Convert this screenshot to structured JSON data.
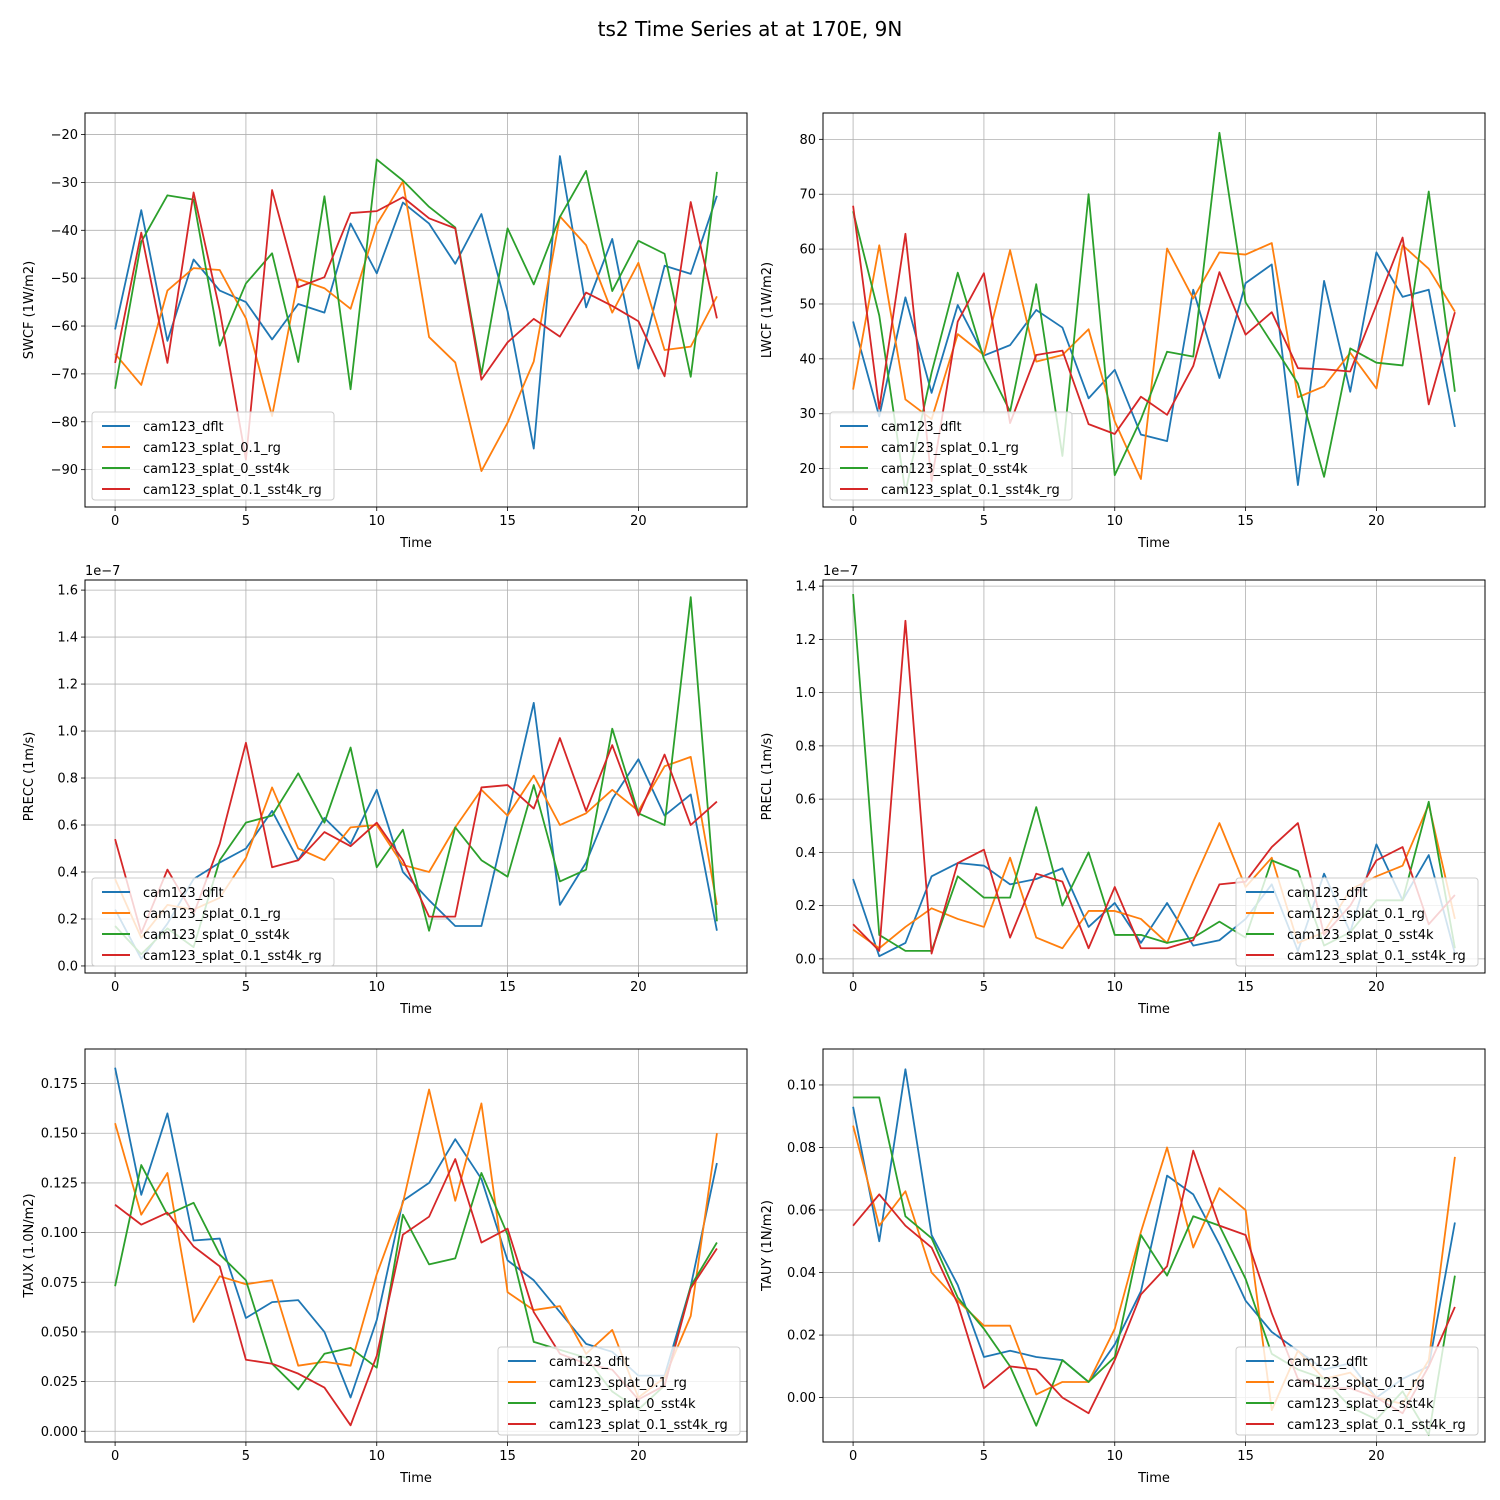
{
  "figure": {
    "title": "ts2 Time Series at at 170E, 9N"
  },
  "colors": {
    "cam123_dflt": "#1f77b4",
    "cam123_splat_0.1_rg": "#ff7f0e",
    "cam123_splat_0_sst4k": "#2ca02c",
    "cam123_splat_0.1_sst4k_rg": "#d62728",
    "grid": "#b0b0b0"
  },
  "chart_data": [
    {
      "type": "line",
      "id": "swcf",
      "title": "",
      "xlabel": "Time",
      "ylabel": "SWCF (1W/m2)",
      "xlim": [
        -1.15,
        24.15
      ],
      "ylim": [
        -15.5,
        -97.8
      ],
      "xticks": [
        0,
        5,
        10,
        15,
        20
      ],
      "yticks": [
        -90,
        -80,
        -70,
        -60,
        -50,
        -40,
        -30,
        -20
      ],
      "ytick_labels": [
        "−90",
        "−80",
        "−70",
        "−60",
        "−50",
        "−40",
        "−30",
        "−20"
      ],
      "offset_label": "",
      "legend": "lower-left",
      "series": [
        {
          "name": "cam123_dflt",
          "values": [
            -60.7,
            -35.8,
            -63.1,
            -46.1,
            -52.6,
            -55.0,
            -62.8,
            -55.4,
            -57.2,
            -38.6,
            -49.0,
            -34.2,
            -38.6,
            -47.0,
            -36.6,
            -56.9,
            -85.6,
            -24.5,
            -56.1,
            -41.8,
            -68.9,
            -47.4,
            -49.1,
            -32.8
          ]
        },
        {
          "name": "cam123_splat_0.1_rg",
          "values": [
            -65.8,
            -72.3,
            -52.6,
            -47.9,
            -48.3,
            -58.4,
            -78.8,
            -50.2,
            -52.1,
            -56.4,
            -38.8,
            -29.8,
            -62.3,
            -67.6,
            -90.3,
            -80.2,
            -67.4,
            -37.1,
            -43.1,
            -57.2,
            -46.8,
            -65.0,
            -64.3,
            -53.8
          ]
        },
        {
          "name": "cam123_splat_0_sst4k",
          "values": [
            -73.1,
            -42.4,
            -32.7,
            -33.6,
            -64.1,
            -51.1,
            -44.8,
            -67.5,
            -32.9,
            -73.2,
            -25.2,
            -29.6,
            -35.1,
            -39.4,
            -70.1,
            -39.6,
            -51.3,
            -37.2,
            -27.6,
            -52.7,
            -42.2,
            -44.9,
            -70.6,
            -27.8
          ]
        },
        {
          "name": "cam123_splat_0.1_sst4k_rg",
          "values": [
            -67.7,
            -40.5,
            -67.7,
            -32.1,
            -56.7,
            -87.9,
            -31.6,
            -51.9,
            -49.8,
            -36.4,
            -36.0,
            -33.1,
            -37.5,
            -39.6,
            -71.2,
            -63.4,
            -58.5,
            -62.2,
            -53.0,
            -55.8,
            -59.0,
            -70.5,
            -34.1,
            -58.4
          ]
        }
      ]
    },
    {
      "type": "line",
      "id": "lwcf",
      "title": "",
      "xlabel": "Time",
      "ylabel": "LWCF (1W/m2)",
      "xlim": [
        -1.15,
        24.15
      ],
      "ylim": [
        84.8,
        13.0
      ],
      "xticks": [
        0,
        5,
        10,
        15,
        20
      ],
      "yticks": [
        20,
        30,
        40,
        50,
        60,
        70,
        80
      ],
      "ytick_labels": [
        "20",
        "30",
        "40",
        "50",
        "60",
        "70",
        "80"
      ],
      "offset_label": "",
      "legend": "lower-left",
      "series": [
        {
          "name": "cam123_dflt",
          "values": [
            46.8,
            29.5,
            51.2,
            33.8,
            49.8,
            40.6,
            42.5,
            48.9,
            45.7,
            32.8,
            38.0,
            26.2,
            25.0,
            52.6,
            36.5,
            53.8,
            57.2,
            17.0,
            54.2,
            34.0,
            59.4,
            51.3,
            52.6,
            27.6
          ]
        },
        {
          "name": "cam123_splat_0.1_rg",
          "values": [
            34.4,
            60.7,
            32.6,
            29.0,
            44.5,
            40.7,
            59.8,
            39.5,
            40.7,
            45.4,
            28.6,
            18.1,
            60.1,
            51.0,
            59.4,
            59.0,
            61.1,
            33.0,
            35.0,
            41.1,
            34.6,
            60.7,
            56.4,
            48.6
          ]
        },
        {
          "name": "cam123_splat_0_sst4k",
          "values": [
            66.9,
            47.9,
            15.7,
            37.5,
            55.7,
            40.0,
            30.4,
            53.6,
            22.3,
            70.0,
            18.8,
            29.0,
            41.3,
            40.4,
            81.2,
            50.3,
            42.9,
            35.5,
            18.5,
            41.9,
            39.3,
            38.8,
            70.5,
            34.0
          ]
        },
        {
          "name": "cam123_splat_0.1_sst4k_rg",
          "values": [
            67.9,
            30.9,
            62.8,
            17.7,
            46.8,
            55.6,
            28.3,
            40.7,
            41.5,
            28.1,
            26.3,
            33.1,
            29.8,
            38.7,
            55.8,
            44.4,
            48.5,
            38.3,
            38.1,
            37.7,
            49.8,
            62.1,
            31.7,
            48.5
          ]
        }
      ]
    },
    {
      "type": "line",
      "id": "precc",
      "title": "",
      "xlabel": "Time",
      "ylabel": "PRECC (1m/s)",
      "xlim": [
        -1.15,
        24.15
      ],
      "ylim": [
        1.643,
        -0.03
      ],
      "xticks": [
        0,
        5,
        10,
        15,
        20
      ],
      "yticks": [
        0.0,
        0.2,
        0.4,
        0.6,
        0.8,
        1.0,
        1.2,
        1.4,
        1.6
      ],
      "ytick_labels": [
        "0.0",
        "0.2",
        "0.4",
        "0.6",
        "0.8",
        "1.0",
        "1.2",
        "1.4",
        "1.6"
      ],
      "offset_label": "1e−7",
      "legend": "lower-left",
      "series": [
        {
          "name": "cam123_dflt",
          "values": [
            0.24,
            0.03,
            0.18,
            0.37,
            0.44,
            0.5,
            0.66,
            0.45,
            0.63,
            0.52,
            0.75,
            0.4,
            0.28,
            0.17,
            0.17,
            0.64,
            1.12,
            0.26,
            0.44,
            0.71,
            0.88,
            0.64,
            0.73,
            0.15
          ]
        },
        {
          "name": "cam123_splat_0.1_rg",
          "values": [
            0.37,
            0.12,
            0.26,
            0.24,
            0.29,
            0.46,
            0.76,
            0.5,
            0.45,
            0.59,
            0.6,
            0.43,
            0.4,
            0.59,
            0.75,
            0.64,
            0.81,
            0.6,
            0.65,
            0.75,
            0.66,
            0.85,
            0.89,
            0.26
          ]
        },
        {
          "name": "cam123_splat_0_sst4k",
          "values": [
            0.17,
            0.05,
            0.16,
            0.08,
            0.45,
            0.61,
            0.64,
            0.82,
            0.61,
            0.93,
            0.42,
            0.58,
            0.15,
            0.59,
            0.45,
            0.38,
            0.77,
            0.36,
            0.41,
            1.01,
            0.65,
            0.6,
            1.57,
            0.19
          ]
        },
        {
          "name": "cam123_splat_0.1_sst4k_rg",
          "values": [
            0.54,
            0.14,
            0.41,
            0.22,
            0.52,
            0.95,
            0.42,
            0.45,
            0.57,
            0.51,
            0.61,
            0.45,
            0.21,
            0.21,
            0.76,
            0.77,
            0.67,
            0.97,
            0.66,
            0.94,
            0.64,
            0.9,
            0.6,
            0.7
          ]
        }
      ]
    },
    {
      "type": "line",
      "id": "precl",
      "title": "",
      "xlabel": "Time",
      "ylabel": "PRECL (1m/s)",
      "xlim": [
        -1.15,
        24.15
      ],
      "ylim": [
        1.423,
        -0.053
      ],
      "xticks": [
        0,
        5,
        10,
        15,
        20
      ],
      "yticks": [
        0.0,
        0.2,
        0.4,
        0.6,
        0.8,
        1.0,
        1.2,
        1.4
      ],
      "ytick_labels": [
        "0.0",
        "0.2",
        "0.4",
        "0.6",
        "0.8",
        "1.0",
        "1.2",
        "1.4"
      ],
      "offset_label": "1e−7",
      "legend": "lower-right",
      "series": [
        {
          "name": "cam123_dflt",
          "values": [
            0.3,
            0.01,
            0.06,
            0.31,
            0.36,
            0.35,
            0.28,
            0.3,
            0.34,
            0.12,
            0.21,
            0.06,
            0.21,
            0.05,
            0.07,
            0.15,
            0.28,
            0.03,
            0.32,
            0.1,
            0.43,
            0.22,
            0.39,
            0.02
          ]
        },
        {
          "name": "cam123_splat_0.1_rg",
          "values": [
            0.11,
            0.04,
            0.12,
            0.19,
            0.15,
            0.12,
            0.38,
            0.08,
            0.04,
            0.18,
            0.18,
            0.15,
            0.06,
            0.29,
            0.51,
            0.27,
            0.38,
            0.06,
            0.1,
            0.26,
            0.31,
            0.35,
            0.58,
            0.15
          ]
        },
        {
          "name": "cam123_splat_0_sst4k",
          "values": [
            1.37,
            0.09,
            0.03,
            0.03,
            0.31,
            0.23,
            0.23,
            0.57,
            0.2,
            0.4,
            0.09,
            0.09,
            0.06,
            0.08,
            0.14,
            0.08,
            0.37,
            0.33,
            0.05,
            0.1,
            0.22,
            0.22,
            0.59,
            0.04
          ]
        },
        {
          "name": "cam123_splat_0.1_sst4k_rg",
          "values": [
            0.13,
            0.03,
            1.27,
            0.02,
            0.36,
            0.41,
            0.08,
            0.32,
            0.29,
            0.04,
            0.27,
            0.04,
            0.04,
            0.07,
            0.28,
            0.29,
            0.42,
            0.51,
            0.09,
            0.2,
            0.37,
            0.42,
            0.13,
            0.24
          ]
        }
      ]
    },
    {
      "type": "line",
      "id": "taux",
      "title": "",
      "xlabel": "Time",
      "ylabel": "TAUX (1.0N/m2)",
      "xlim": [
        -1.15,
        24.15
      ],
      "ylim": [
        0.1924,
        -0.0054
      ],
      "xticks": [
        0,
        5,
        10,
        15,
        20
      ],
      "yticks": [
        0.0,
        0.025,
        0.05,
        0.075,
        0.1,
        0.125,
        0.15,
        0.175
      ],
      "ytick_labels": [
        "0.000",
        "0.025",
        "0.050",
        "0.075",
        "0.100",
        "0.125",
        "0.150",
        "0.175"
      ],
      "offset_label": "",
      "legend": "lower-right",
      "series": [
        {
          "name": "cam123_dflt",
          "values": [
            0.183,
            0.119,
            0.16,
            0.096,
            0.097,
            0.057,
            0.065,
            0.066,
            0.05,
            0.017,
            0.056,
            0.116,
            0.125,
            0.147,
            0.127,
            0.086,
            0.076,
            0.06,
            0.044,
            0.04,
            0.028,
            0.028,
            0.073,
            0.135
          ]
        },
        {
          "name": "cam123_splat_0.1_rg",
          "values": [
            0.155,
            0.109,
            0.13,
            0.055,
            0.078,
            0.074,
            0.076,
            0.033,
            0.035,
            0.033,
            0.079,
            0.115,
            0.172,
            0.116,
            0.165,
            0.07,
            0.061,
            0.063,
            0.039,
            0.051,
            0.017,
            0.027,
            0.058,
            0.15
          ]
        },
        {
          "name": "cam123_splat_0_sst4k",
          "values": [
            0.073,
            0.134,
            0.109,
            0.115,
            0.089,
            0.076,
            0.034,
            0.021,
            0.039,
            0.042,
            0.032,
            0.109,
            0.084,
            0.087,
            0.13,
            0.099,
            0.045,
            0.041,
            0.037,
            0.02,
            0.011,
            0.023,
            0.073,
            0.095
          ]
        },
        {
          "name": "cam123_splat_0.1_sst4k_rg",
          "values": [
            0.114,
            0.104,
            0.11,
            0.093,
            0.083,
            0.036,
            0.034,
            0.029,
            0.022,
            0.003,
            0.038,
            0.099,
            0.108,
            0.137,
            0.095,
            0.102,
            0.06,
            0.039,
            0.034,
            0.031,
            0.016,
            0.023,
            0.072,
            0.092
          ]
        }
      ]
    },
    {
      "type": "line",
      "id": "tauy",
      "title": "",
      "xlabel": "Time",
      "ylabel": "TAUY (1N/m2)",
      "xlim": [
        -1.15,
        24.15
      ],
      "ylim": [
        0.1115,
        -0.0142
      ],
      "xticks": [
        0,
        5,
        10,
        15,
        20
      ],
      "yticks": [
        0.0,
        0.02,
        0.04,
        0.06,
        0.08,
        0.1
      ],
      "ytick_labels": [
        "0.00",
        "0.02",
        "0.04",
        "0.06",
        "0.08",
        "0.10"
      ],
      "offset_label": "",
      "legend": "lower-right",
      "series": [
        {
          "name": "cam123_dflt",
          "values": [
            0.093,
            0.05,
            0.105,
            0.052,
            0.036,
            0.013,
            0.015,
            0.013,
            0.012,
            0.005,
            0.017,
            0.034,
            0.071,
            0.065,
            0.049,
            0.031,
            0.021,
            0.015,
            0.009,
            0.011,
            0.0,
            0.006,
            0.01,
            0.056
          ]
        },
        {
          "name": "cam123_splat_0.1_rg",
          "values": [
            0.087,
            0.055,
            0.066,
            0.04,
            0.031,
            0.023,
            0.023,
            0.001,
            0.005,
            0.005,
            0.022,
            0.053,
            0.08,
            0.048,
            0.067,
            0.06,
            -0.004,
            0.015,
            0.006,
            0.008,
            0.0,
            -0.002,
            0.012,
            0.077
          ]
        },
        {
          "name": "cam123_splat_0_sst4k",
          "values": [
            0.096,
            0.096,
            0.058,
            0.051,
            0.032,
            0.022,
            0.01,
            -0.009,
            0.012,
            0.005,
            0.013,
            0.052,
            0.039,
            0.058,
            0.055,
            0.038,
            0.014,
            0.009,
            0.006,
            -0.003,
            -0.007,
            0.002,
            -0.012,
            0.039
          ]
        },
        {
          "name": "cam123_splat_0.1_sst4k_rg",
          "values": [
            0.055,
            0.065,
            0.055,
            0.048,
            0.03,
            0.003,
            0.01,
            0.009,
            0.0,
            -0.005,
            0.012,
            0.033,
            0.042,
            0.079,
            0.055,
            0.052,
            0.027,
            0.006,
            0.003,
            0.003,
            0.0,
            -0.005,
            0.01,
            0.029
          ]
        }
      ]
    }
  ]
}
